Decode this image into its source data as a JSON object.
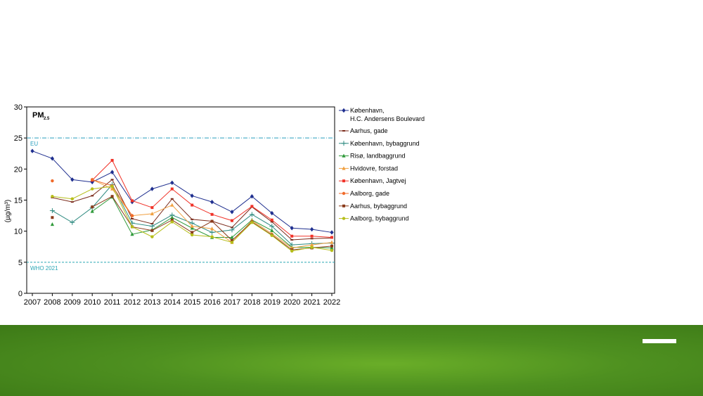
{
  "chart_data": {
    "type": "line",
    "title": "PM",
    "title_subscript": "2.5",
    "ylabel": "(µg/m³)",
    "xlabel": "",
    "ylim": [
      0,
      30
    ],
    "yticks": [
      0,
      5,
      10,
      15,
      20,
      25,
      30
    ],
    "x": [
      "2007",
      "2008",
      "2009",
      "2010",
      "2011",
      "2012",
      "2013",
      "2014",
      "2015",
      "2016",
      "2017",
      "2018",
      "2019",
      "2020",
      "2021",
      "2022"
    ],
    "reference_lines": [
      {
        "label": "EU",
        "value": 25,
        "color": "#2a9fbf",
        "style": "dash-dot"
      },
      {
        "label": "WHO 2021",
        "value": 5,
        "color": "#2aa6b4",
        "style": "dashed"
      }
    ],
    "legend_position": "right",
    "series": [
      {
        "name": "København, H.C. Andersens Boulevard",
        "name_lines": [
          "København,",
          "H.C. Andersens Boulevard"
        ],
        "color": "#1f2f8f",
        "marker": "diamond",
        "values": [
          22.9,
          21.7,
          18.3,
          17.9,
          19.5,
          14.7,
          16.8,
          17.8,
          15.7,
          14.7,
          13.1,
          15.6,
          12.9,
          10.5,
          10.3,
          9.8
        ]
      },
      {
        "name": "Aarhus, gade",
        "name_lines": [
          "Aarhus, gade"
        ],
        "color": "#7a2a1a",
        "marker": "dash",
        "values": [
          null,
          15.4,
          14.7,
          15.7,
          18.3,
          12.0,
          11.2,
          15.2,
          11.9,
          11.6,
          10.6,
          13.9,
          11.5,
          8.6,
          8.8,
          8.9
        ]
      },
      {
        "name": "København, bybaggrund",
        "name_lines": [
          "København, bybaggrund"
        ],
        "color": "#2e8a80",
        "marker": "plus",
        "values": [
          null,
          13.3,
          11.4,
          13.8,
          17.5,
          11.3,
          10.8,
          12.6,
          11.3,
          9.8,
          10.2,
          12.7,
          10.8,
          7.8,
          8.0,
          8.1
        ]
      },
      {
        "name": "Risø, landbaggrund",
        "name_lines": [
          "Risø, landbaggrund"
        ],
        "color": "#2f9a3a",
        "marker": "triangle",
        "values": [
          null,
          11.1,
          null,
          13.2,
          15.5,
          9.5,
          10.2,
          12.2,
          10.5,
          9.0,
          9.0,
          11.8,
          10.1,
          7.4,
          7.4,
          7.3
        ]
      },
      {
        "name": "Hvidovre, forstad",
        "name_lines": [
          "Hvidovre, forstad"
        ],
        "color": "#f0a040",
        "marker": "triangle",
        "values": [
          null,
          null,
          null,
          18.3,
          16.8,
          12.5,
          12.8,
          14.2,
          10.8,
          10.4,
          8.2,
          11.7,
          9.6,
          7.3,
          7.8,
          8.2
        ]
      },
      {
        "name": "København, Jagtvej",
        "name_lines": [
          "København, Jagtvej"
        ],
        "color": "#f03228",
        "marker": "square",
        "values": [
          null,
          null,
          null,
          18.2,
          21.4,
          14.9,
          13.8,
          16.8,
          14.2,
          12.7,
          11.7,
          14.0,
          11.8,
          9.2,
          9.2,
          9.0
        ]
      },
      {
        "name": "Aalborg, gade",
        "name_lines": [
          "Aalborg, gade"
        ],
        "color": "#f06a2a",
        "marker": "circle",
        "values": [
          null,
          18.1,
          null,
          18.3,
          17.3,
          12.5,
          null,
          null,
          null,
          null,
          null,
          null,
          null,
          null,
          null,
          null
        ]
      },
      {
        "name": "Aarhus, bybaggrund",
        "name_lines": [
          "Aarhus, bybaggrund"
        ],
        "color": "#8a3a1a",
        "marker": "square",
        "values": [
          null,
          12.2,
          null,
          13.9,
          15.6,
          10.7,
          10.1,
          11.8,
          9.8,
          11.6,
          8.5,
          11.5,
          9.4,
          7.0,
          7.3,
          7.6
        ]
      },
      {
        "name": "Aalborg, bybaggrund",
        "name_lines": [
          "Aalborg, bybaggrund"
        ],
        "color": "#b6be1a",
        "marker": "circle",
        "values": [
          null,
          15.6,
          15.2,
          16.8,
          17.2,
          10.7,
          9.1,
          11.5,
          9.4,
          9.1,
          8.2,
          11.4,
          9.3,
          6.8,
          7.4,
          6.9
        ]
      }
    ]
  },
  "colors": {
    "footer_green": "#4e9020",
    "axis": "#000000"
  }
}
